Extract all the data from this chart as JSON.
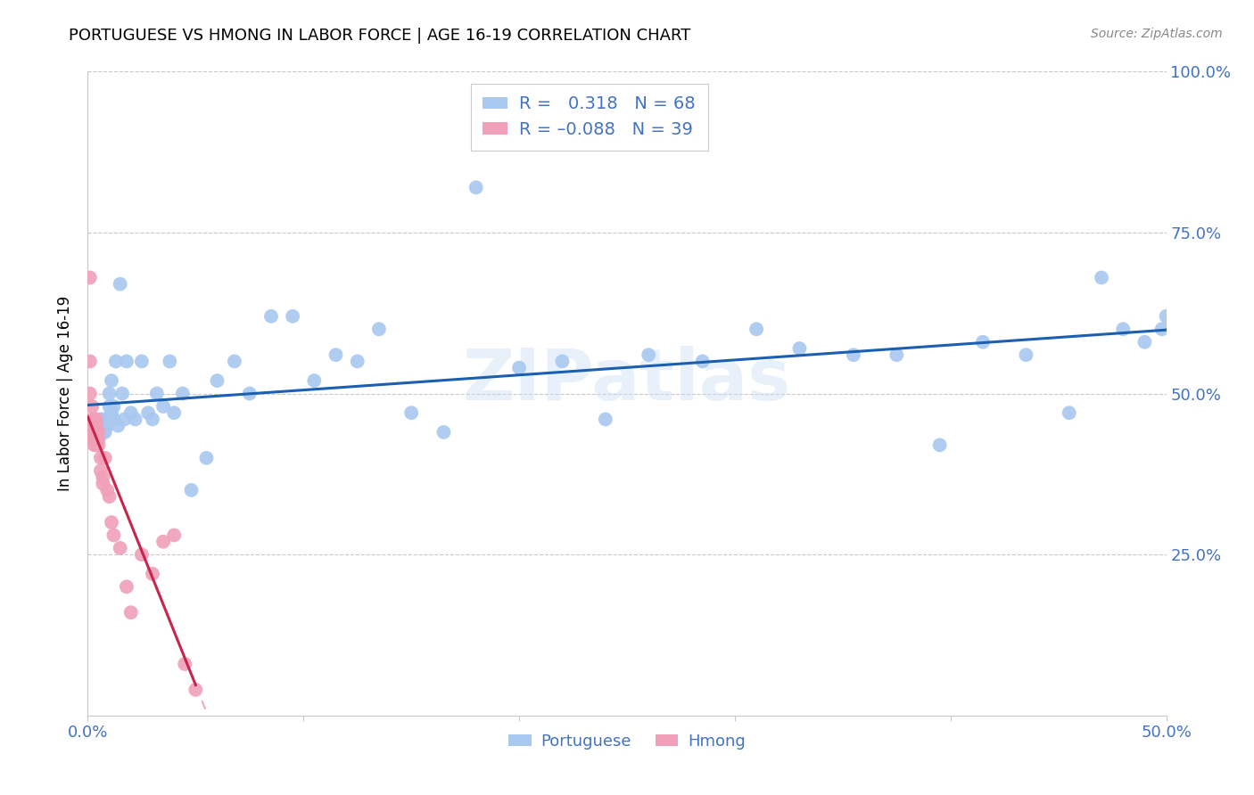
{
  "title": "PORTUGUESE VS HMONG IN LABOR FORCE | AGE 16-19 CORRELATION CHART",
  "source": "Source: ZipAtlas.com",
  "ylabel": "In Labor Force | Age 16-19",
  "xlim": [
    0.0,
    0.5
  ],
  "ylim": [
    0.0,
    1.0
  ],
  "portuguese_R": 0.318,
  "portuguese_N": 68,
  "hmong_R": -0.088,
  "hmong_N": 39,
  "portuguese_color": "#a8c8f0",
  "portuguese_line_color": "#1a5fb0",
  "hmong_color": "#f0a0b8",
  "hmong_line_color": "#c8254a",
  "hmong_dash_color": "#e8b0c0",
  "tick_color": "#4472c4",
  "grid_color": "#c8c8c8",
  "watermark": "ZIPatlas",
  "portuguese_x": [
    0.002,
    0.003,
    0.004,
    0.004,
    0.005,
    0.005,
    0.006,
    0.006,
    0.007,
    0.007,
    0.008,
    0.008,
    0.009,
    0.009,
    0.01,
    0.01,
    0.011,
    0.011,
    0.012,
    0.012,
    0.013,
    0.014,
    0.015,
    0.016,
    0.017,
    0.018,
    0.02,
    0.022,
    0.025,
    0.028,
    0.03,
    0.032,
    0.035,
    0.038,
    0.04,
    0.044,
    0.048,
    0.055,
    0.06,
    0.068,
    0.075,
    0.085,
    0.095,
    0.105,
    0.115,
    0.125,
    0.135,
    0.15,
    0.165,
    0.18,
    0.2,
    0.22,
    0.24,
    0.26,
    0.285,
    0.31,
    0.33,
    0.355,
    0.375,
    0.395,
    0.415,
    0.435,
    0.455,
    0.47,
    0.48,
    0.49,
    0.498,
    0.5
  ],
  "portuguese_y": [
    0.44,
    0.43,
    0.45,
    0.44,
    0.43,
    0.44,
    0.46,
    0.45,
    0.44,
    0.46,
    0.45,
    0.44,
    0.46,
    0.45,
    0.48,
    0.5,
    0.52,
    0.47,
    0.46,
    0.48,
    0.55,
    0.45,
    0.67,
    0.5,
    0.46,
    0.55,
    0.47,
    0.46,
    0.55,
    0.47,
    0.46,
    0.5,
    0.48,
    0.55,
    0.47,
    0.5,
    0.35,
    0.4,
    0.52,
    0.55,
    0.5,
    0.62,
    0.62,
    0.52,
    0.56,
    0.55,
    0.6,
    0.47,
    0.44,
    0.82,
    0.54,
    0.55,
    0.46,
    0.56,
    0.55,
    0.6,
    0.57,
    0.56,
    0.56,
    0.42,
    0.58,
    0.56,
    0.47,
    0.68,
    0.6,
    0.58,
    0.6,
    0.62
  ],
  "hmong_x": [
    0.001,
    0.001,
    0.001,
    0.002,
    0.002,
    0.002,
    0.002,
    0.002,
    0.003,
    0.003,
    0.003,
    0.003,
    0.003,
    0.004,
    0.004,
    0.004,
    0.004,
    0.004,
    0.005,
    0.005,
    0.005,
    0.006,
    0.006,
    0.007,
    0.007,
    0.008,
    0.009,
    0.01,
    0.011,
    0.012,
    0.015,
    0.018,
    0.02,
    0.025,
    0.03,
    0.035,
    0.04,
    0.045,
    0.05
  ],
  "hmong_y": [
    0.68,
    0.55,
    0.5,
    0.48,
    0.46,
    0.45,
    0.44,
    0.43,
    0.46,
    0.45,
    0.44,
    0.43,
    0.42,
    0.46,
    0.45,
    0.44,
    0.43,
    0.42,
    0.44,
    0.43,
    0.42,
    0.4,
    0.38,
    0.37,
    0.36,
    0.4,
    0.35,
    0.34,
    0.3,
    0.28,
    0.26,
    0.2,
    0.16,
    0.25,
    0.22,
    0.27,
    0.28,
    0.08,
    0.04
  ]
}
